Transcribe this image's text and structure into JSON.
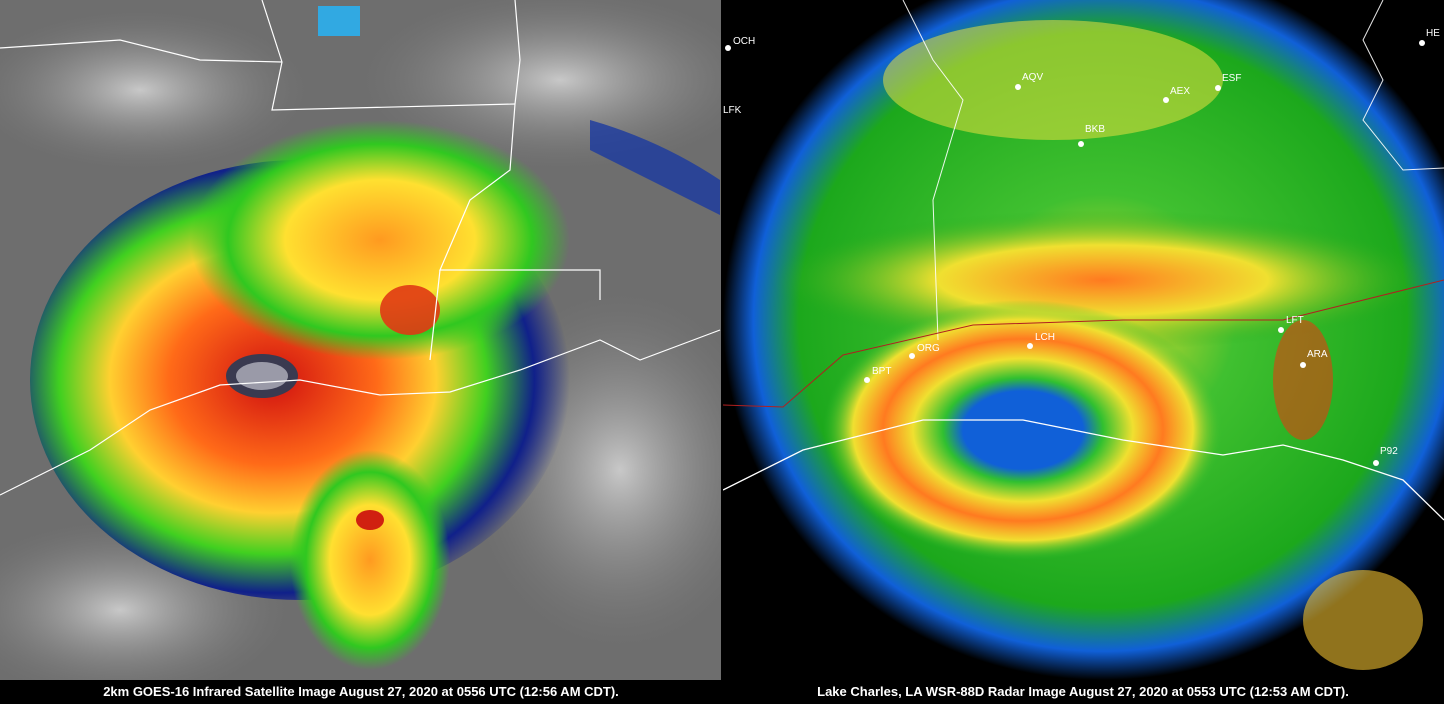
{
  "left_panel": {
    "caption": "2km GOES-16 Infrared Satellite Image August 27, 2020 at 0556 UTC (12:56 AM CDT)."
  },
  "right_panel": {
    "caption": "Lake Charles, LA WSR-88D Radar Image August 27, 2020 at 0553 UTC (12:53 AM CDT).",
    "city_labels": [
      "OCH",
      "LFK",
      "AQV",
      "AEX",
      "ESF",
      "BKB",
      "LCH",
      "ORG",
      "BPT",
      "LFT",
      "ARA",
      "P92",
      "HE"
    ]
  },
  "colors": {
    "ir_cold": "#d01010",
    "ir_warm": "#ff8a20",
    "ir_mid": "#ffe030",
    "ir_green": "#30c820",
    "ir_blue": "#10208a",
    "radar_green": "#1ca81c",
    "radar_yellow": "#f0e030",
    "radar_red": "#e02010",
    "radar_blue": "#1060d8"
  }
}
